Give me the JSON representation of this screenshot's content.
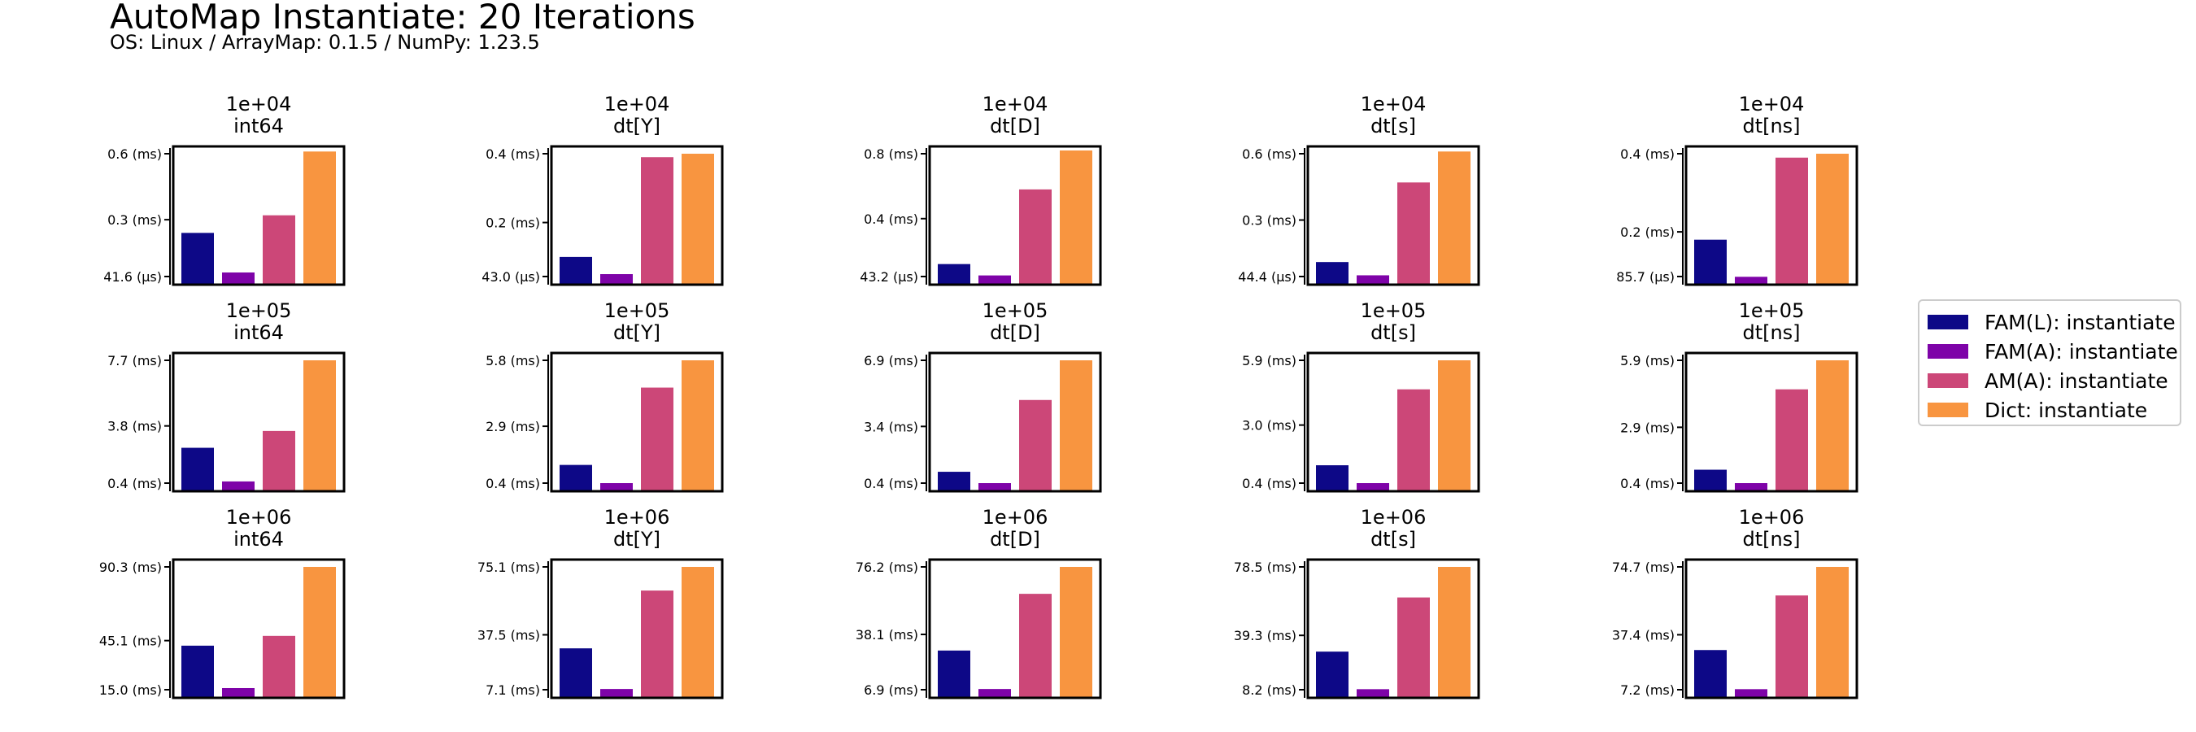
{
  "title": "AutoMap Instantiate: 20 Iterations",
  "subtitle": "OS: Linux / ArrayMap: 0.1.5 / NumPy: 1.23.5",
  "legend": [
    {
      "label": "FAM(L): instantiate",
      "color": "#0d0887"
    },
    {
      "label": "FAM(A): instantiate",
      "color": "#7e03a8"
    },
    {
      "label": "AM(A): instantiate",
      "color": "#cc4778"
    },
    {
      "label": "Dict: instantiate",
      "color": "#f89540"
    }
  ],
  "chart_data": [
    {
      "type": "bar",
      "title": [
        "1e+04",
        "int64"
      ],
      "unit": "ms",
      "ticks": [
        {
          "value": 0.0416,
          "label": "41.6 (µs)"
        },
        {
          "value": 0.3,
          "label": "0.3 (ms)"
        },
        {
          "value": 0.6,
          "label": "0.6 (ms)"
        }
      ],
      "series": [
        {
          "name": "FAM(L): instantiate",
          "value": 0.24
        },
        {
          "name": "FAM(A): instantiate",
          "value": 0.06
        },
        {
          "name": "AM(A): instantiate",
          "value": 0.32
        },
        {
          "name": "Dict: instantiate",
          "value": 0.61
        }
      ]
    },
    {
      "type": "bar",
      "title": [
        "1e+04",
        "dt[Y]"
      ],
      "unit": "ms",
      "ticks": [
        {
          "value": 0.043,
          "label": "43.0 (µs)"
        },
        {
          "value": 0.2,
          "label": "0.2 (ms)"
        },
        {
          "value": 0.4,
          "label": "0.4 (ms)"
        }
      ],
      "series": [
        {
          "name": "FAM(L): instantiate",
          "value": 0.1
        },
        {
          "name": "FAM(A): instantiate",
          "value": 0.05
        },
        {
          "name": "AM(A): instantiate",
          "value": 0.39
        },
        {
          "name": "Dict: instantiate",
          "value": 0.4
        }
      ]
    },
    {
      "type": "bar",
      "title": [
        "1e+04",
        "dt[D]"
      ],
      "unit": "ms",
      "ticks": [
        {
          "value": 0.0432,
          "label": "43.2 (µs)"
        },
        {
          "value": 0.4,
          "label": "0.4 (ms)"
        },
        {
          "value": 0.8,
          "label": "0.8 (ms)"
        }
      ],
      "series": [
        {
          "name": "FAM(L): instantiate",
          "value": 0.12
        },
        {
          "name": "FAM(A): instantiate",
          "value": 0.05
        },
        {
          "name": "AM(A): instantiate",
          "value": 0.58
        },
        {
          "name": "Dict: instantiate",
          "value": 0.82
        }
      ]
    },
    {
      "type": "bar",
      "title": [
        "1e+04",
        "dt[s]"
      ],
      "unit": "ms",
      "ticks": [
        {
          "value": 0.0444,
          "label": "44.4 (µs)"
        },
        {
          "value": 0.3,
          "label": "0.3 (ms)"
        },
        {
          "value": 0.6,
          "label": "0.6 (ms)"
        }
      ],
      "series": [
        {
          "name": "FAM(L): instantiate",
          "value": 0.11
        },
        {
          "name": "FAM(A): instantiate",
          "value": 0.05
        },
        {
          "name": "AM(A): instantiate",
          "value": 0.47
        },
        {
          "name": "Dict: instantiate",
          "value": 0.61
        }
      ]
    },
    {
      "type": "bar",
      "title": [
        "1e+04",
        "dt[ns]"
      ],
      "unit": "ms",
      "ticks": [
        {
          "value": 0.0857,
          "label": "85.7 (µs)"
        },
        {
          "value": 0.2,
          "label": "0.2 (ms)"
        },
        {
          "value": 0.4,
          "label": "0.4 (ms)"
        }
      ],
      "series": [
        {
          "name": "FAM(L): instantiate",
          "value": 0.18
        },
        {
          "name": "FAM(A): instantiate",
          "value": 0.085
        },
        {
          "name": "AM(A): instantiate",
          "value": 0.39
        },
        {
          "name": "Dict: instantiate",
          "value": 0.4
        }
      ]
    },
    {
      "type": "bar",
      "title": [
        "1e+05",
        "int64"
      ],
      "unit": "ms",
      "ticks": [
        {
          "value": 0.4,
          "label": "0.4 (ms)"
        },
        {
          "value": 3.8,
          "label": "3.8 (ms)"
        },
        {
          "value": 7.7,
          "label": "7.7 (ms)"
        }
      ],
      "series": [
        {
          "name": "FAM(L): instantiate",
          "value": 2.5
        },
        {
          "name": "FAM(A): instantiate",
          "value": 0.5
        },
        {
          "name": "AM(A): instantiate",
          "value": 3.5
        },
        {
          "name": "Dict: instantiate",
          "value": 7.7
        }
      ]
    },
    {
      "type": "bar",
      "title": [
        "1e+05",
        "dt[Y]"
      ],
      "unit": "ms",
      "ticks": [
        {
          "value": 0.4,
          "label": "0.4 (ms)"
        },
        {
          "value": 2.9,
          "label": "2.9 (ms)"
        },
        {
          "value": 5.8,
          "label": "5.8 (ms)"
        }
      ],
      "series": [
        {
          "name": "FAM(L): instantiate",
          "value": 1.2
        },
        {
          "name": "FAM(A): instantiate",
          "value": 0.4
        },
        {
          "name": "AM(A): instantiate",
          "value": 4.6
        },
        {
          "name": "Dict: instantiate",
          "value": 5.8
        }
      ]
    },
    {
      "type": "bar",
      "title": [
        "1e+05",
        "dt[D]"
      ],
      "unit": "ms",
      "ticks": [
        {
          "value": 0.4,
          "label": "0.4 (ms)"
        },
        {
          "value": 3.4,
          "label": "3.4 (ms)"
        },
        {
          "value": 6.9,
          "label": "6.9 (ms)"
        }
      ],
      "series": [
        {
          "name": "FAM(L): instantiate",
          "value": 1.0
        },
        {
          "name": "FAM(A): instantiate",
          "value": 0.4
        },
        {
          "name": "AM(A): instantiate",
          "value": 4.8
        },
        {
          "name": "Dict: instantiate",
          "value": 6.9
        }
      ]
    },
    {
      "type": "bar",
      "title": [
        "1e+05",
        "dt[s]"
      ],
      "unit": "ms",
      "ticks": [
        {
          "value": 0.4,
          "label": "0.4 (ms)"
        },
        {
          "value": 3.0,
          "label": "3.0 (ms)"
        },
        {
          "value": 5.9,
          "label": "5.9 (ms)"
        }
      ],
      "series": [
        {
          "name": "FAM(L): instantiate",
          "value": 1.2
        },
        {
          "name": "FAM(A): instantiate",
          "value": 0.4
        },
        {
          "name": "AM(A): instantiate",
          "value": 4.6
        },
        {
          "name": "Dict: instantiate",
          "value": 5.9
        }
      ]
    },
    {
      "type": "bar",
      "title": [
        "1e+05",
        "dt[ns]"
      ],
      "unit": "ms",
      "ticks": [
        {
          "value": 0.4,
          "label": "0.4 (ms)"
        },
        {
          "value": 2.9,
          "label": "2.9 (ms)"
        },
        {
          "value": 5.9,
          "label": "5.9 (ms)"
        }
      ],
      "series": [
        {
          "name": "FAM(L): instantiate",
          "value": 1.0
        },
        {
          "name": "FAM(A): instantiate",
          "value": 0.4
        },
        {
          "name": "AM(A): instantiate",
          "value": 4.6
        },
        {
          "name": "Dict: instantiate",
          "value": 5.9
        }
      ]
    },
    {
      "type": "bar",
      "title": [
        "1e+06",
        "int64"
      ],
      "unit": "ms",
      "ticks": [
        {
          "value": 15.0,
          "label": "15.0 (ms)"
        },
        {
          "value": 45.1,
          "label": "45.1 (ms)"
        },
        {
          "value": 90.3,
          "label": "90.3 (ms)"
        }
      ],
      "series": [
        {
          "name": "FAM(L): instantiate",
          "value": 42.0
        },
        {
          "name": "FAM(A): instantiate",
          "value": 16.0
        },
        {
          "name": "AM(A): instantiate",
          "value": 48.0
        },
        {
          "name": "Dict: instantiate",
          "value": 90.3
        }
      ]
    },
    {
      "type": "bar",
      "title": [
        "1e+06",
        "dt[Y]"
      ],
      "unit": "ms",
      "ticks": [
        {
          "value": 7.1,
          "label": "7.1 (ms)"
        },
        {
          "value": 37.5,
          "label": "37.5 (ms)"
        },
        {
          "value": 75.1,
          "label": "75.1 (ms)"
        }
      ],
      "series": [
        {
          "name": "FAM(L): instantiate",
          "value": 30.0
        },
        {
          "name": "FAM(A): instantiate",
          "value": 7.5
        },
        {
          "name": "AM(A): instantiate",
          "value": 62.0
        },
        {
          "name": "Dict: instantiate",
          "value": 75.1
        }
      ]
    },
    {
      "type": "bar",
      "title": [
        "1e+06",
        "dt[D]"
      ],
      "unit": "ms",
      "ticks": [
        {
          "value": 6.9,
          "label": "6.9 (ms)"
        },
        {
          "value": 38.1,
          "label": "38.1 (ms)"
        },
        {
          "value": 76.2,
          "label": "76.2 (ms)"
        }
      ],
      "series": [
        {
          "name": "FAM(L): instantiate",
          "value": 29.0
        },
        {
          "name": "FAM(A): instantiate",
          "value": 7.3
        },
        {
          "name": "AM(A): instantiate",
          "value": 61.0
        },
        {
          "name": "Dict: instantiate",
          "value": 76.2
        }
      ]
    },
    {
      "type": "bar",
      "title": [
        "1e+06",
        "dt[s]"
      ],
      "unit": "ms",
      "ticks": [
        {
          "value": 8.2,
          "label": "8.2 (ms)"
        },
        {
          "value": 39.3,
          "label": "39.3 (ms)"
        },
        {
          "value": 78.5,
          "label": "78.5 (ms)"
        }
      ],
      "series": [
        {
          "name": "FAM(L): instantiate",
          "value": 30.0
        },
        {
          "name": "FAM(A): instantiate",
          "value": 8.5
        },
        {
          "name": "AM(A): instantiate",
          "value": 61.0
        },
        {
          "name": "Dict: instantiate",
          "value": 78.5
        }
      ]
    },
    {
      "type": "bar",
      "title": [
        "1e+06",
        "dt[ns]"
      ],
      "unit": "ms",
      "ticks": [
        {
          "value": 7.2,
          "label": "7.2 (ms)"
        },
        {
          "value": 37.4,
          "label": "37.4 (ms)"
        },
        {
          "value": 74.7,
          "label": "74.7 (ms)"
        }
      ],
      "series": [
        {
          "name": "FAM(L): instantiate",
          "value": 29.0
        },
        {
          "name": "FAM(A): instantiate",
          "value": 7.5
        },
        {
          "name": "AM(A): instantiate",
          "value": 59.0
        },
        {
          "name": "Dict: instantiate",
          "value": 74.7
        }
      ]
    }
  ]
}
